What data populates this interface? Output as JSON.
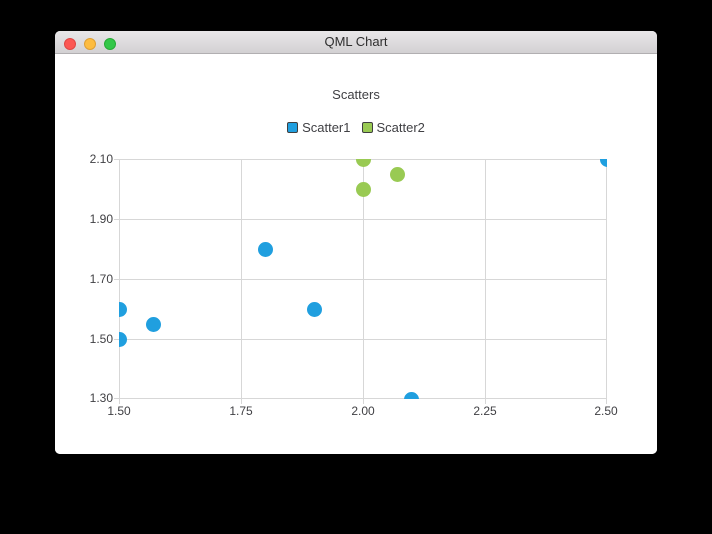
{
  "window": {
    "title": "QML Chart",
    "traffic_lights": [
      {
        "name": "close"
      },
      {
        "name": "minimize"
      },
      {
        "name": "zoom"
      }
    ]
  },
  "chart_data": {
    "type": "scatter",
    "title": "Scatters",
    "xlabel": "",
    "ylabel": "",
    "xlim": [
      1.5,
      2.5
    ],
    "ylim": [
      1.3,
      2.1
    ],
    "x_tick_labels": [
      "1.50",
      "1.75",
      "2.00",
      "2.25",
      "2.50"
    ],
    "y_tick_labels": [
      "2.10",
      "1.90",
      "1.70",
      "1.50",
      "1.30"
    ],
    "grid": true,
    "legend_position": "top",
    "marker_size_px": 15,
    "series": [
      {
        "name": "Scatter1",
        "color": "#209fdf",
        "points": [
          [
            1.5,
            1.5
          ],
          [
            1.5,
            1.6
          ],
          [
            1.57,
            1.55
          ],
          [
            1.8,
            1.8
          ],
          [
            1.9,
            1.6
          ],
          [
            2.1,
            1.3
          ],
          [
            2.5,
            2.1
          ]
        ]
      },
      {
        "name": "Scatter2",
        "color": "#99ca53",
        "points": [
          [
            2.0,
            2.0
          ],
          [
            2.0,
            2.1
          ],
          [
            2.07,
            2.05
          ]
        ]
      }
    ]
  }
}
